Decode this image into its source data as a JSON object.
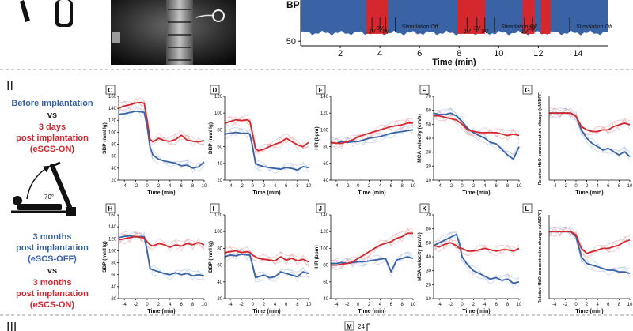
{
  "section_labels": {
    "two": "II",
    "three": "III"
  },
  "side_text": {
    "before": "Before implantation",
    "vs": "vs",
    "days_a": "3 days",
    "days_b": "post implantation",
    "days_c": "(eSCS-ON)",
    "months_a": "3 months",
    "months_b": "post implantation",
    "months_c": "(eSCS-OFF)",
    "vs2": "vs",
    "months2_a": "3 months",
    "months2_b": "post implantation",
    "months2_c": "(eSCS-ON)",
    "angle": "70°"
  },
  "colors": {
    "before": "#3a63a6",
    "on": "#d4272e",
    "off": "#3a63a6",
    "stim_fill": "#d4272e",
    "bp_fill": "#3a63a6"
  },
  "panel_m": {
    "letter": "M",
    "value": "24"
  },
  "chart_data": [
    {
      "id": "top-bp",
      "type": "area",
      "ylabel": "BP",
      "xlabel": "Time (min)",
      "xlim": [
        0,
        15.5
      ],
      "xticks": [
        2,
        4,
        6,
        8,
        10,
        12,
        14
      ],
      "yticks": [
        50
      ],
      "ylim": [
        40,
        140
      ],
      "stimulation_windows": [
        [
          3.3,
          4.4
        ],
        [
          7.9,
          9.3
        ],
        [
          11.2,
          11.8
        ],
        [
          12.1,
          12.6
        ]
      ],
      "annotations": [
        {
          "label": "1V",
          "x": 3.6
        },
        {
          "label": "3V",
          "x": 4.0
        },
        {
          "label": "5V",
          "x": 4.3
        },
        {
          "label": "Stimulation Off",
          "x": 5.1
        },
        {
          "label": "1V",
          "x": 8.4
        },
        {
          "label": "3V",
          "x": 8.9
        },
        {
          "label": "5V",
          "x": 9.3
        },
        {
          "label": "Stimulation Off",
          "x": 10.1
        },
        {
          "label": "1V",
          "x": 11.3
        },
        {
          "label": "3V",
          "x": 11.7
        },
        {
          "label": "Stimulation Off",
          "x": 13.9
        }
      ]
    },
    {
      "id": "C",
      "letter": "C",
      "type": "line",
      "ylabel": "SBP (mmHg)",
      "xlabel": "Time (min)",
      "ylim": [
        20,
        160
      ],
      "yticks": [
        20,
        40,
        60,
        80,
        100,
        120,
        140,
        160
      ],
      "xticks": [
        -4,
        -2,
        0,
        2,
        4,
        6,
        8,
        10
      ],
      "series": [
        {
          "key": "before",
          "x": [
            -5,
            -4,
            -3,
            -2,
            -1,
            -0.5,
            0,
            0.5,
            1,
            2,
            3,
            4,
            5,
            6,
            7,
            8,
            9,
            10
          ],
          "y": [
            130,
            131,
            133,
            135,
            134,
            133,
            110,
            75,
            62,
            55,
            52,
            50,
            48,
            44,
            45,
            40,
            42,
            50
          ]
        },
        {
          "key": "after",
          "x": [
            -5,
            -4,
            -3,
            -2,
            -1,
            -0.5,
            0,
            0.5,
            1,
            2,
            3,
            4,
            5,
            6,
            7,
            8,
            9,
            10
          ],
          "y": [
            140,
            144,
            146,
            149,
            150,
            148,
            120,
            88,
            84,
            90,
            86,
            85,
            88,
            95,
            87,
            85,
            84,
            86
          ]
        }
      ]
    },
    {
      "id": "D",
      "letter": "D",
      "type": "line",
      "ylabel": "DBP (mmHg)",
      "xlabel": "Time (min)",
      "ylim": [
        20,
        120
      ],
      "yticks": [
        20,
        40,
        60,
        80,
        100,
        120
      ],
      "xticks": [
        -4,
        -2,
        0,
        2,
        4,
        6,
        8,
        10
      ],
      "series": [
        {
          "key": "before",
          "x": [
            -5,
            -4,
            -3,
            -2,
            -1,
            -0.5,
            0,
            0.5,
            1,
            2,
            3,
            4,
            5,
            6,
            7,
            8,
            9,
            10
          ],
          "y": [
            75,
            76,
            77,
            76,
            76,
            75,
            60,
            40,
            38,
            36,
            35,
            34,
            33,
            35,
            34,
            32,
            36,
            35
          ]
        },
        {
          "key": "after",
          "x": [
            -5,
            -4,
            -3,
            -2,
            -1,
            -0.5,
            0,
            0.5,
            1,
            2,
            3,
            4,
            5,
            6,
            7,
            8,
            9,
            10
          ],
          "y": [
            88,
            90,
            92,
            91,
            92,
            90,
            75,
            58,
            55,
            57,
            60,
            63,
            65,
            70,
            66,
            62,
            60,
            65
          ]
        }
      ]
    },
    {
      "id": "E",
      "letter": "E",
      "type": "line",
      "ylabel": "HR (bpm)",
      "xlabel": "Time (min)",
      "ylim": [
        40,
        140
      ],
      "yticks": [
        40,
        60,
        80,
        100,
        120,
        140
      ],
      "xticks": [
        -4,
        -2,
        0,
        2,
        4,
        6,
        8,
        10
      ],
      "series": [
        {
          "key": "before",
          "x": [
            -5,
            -4,
            -3,
            -2,
            -1,
            0,
            1,
            2,
            3,
            4,
            5,
            6,
            7,
            8,
            9,
            10
          ],
          "y": [
            85,
            84,
            86,
            85,
            86,
            86,
            88,
            90,
            91,
            92,
            94,
            96,
            97,
            98,
            99,
            100
          ]
        },
        {
          "key": "after",
          "x": [
            -5,
            -4,
            -3,
            -2,
            -1,
            0,
            1,
            2,
            3,
            4,
            5,
            6,
            7,
            8,
            9,
            10
          ],
          "y": [
            85,
            84,
            84,
            86,
            88,
            92,
            94,
            96,
            98,
            100,
            102,
            104,
            105,
            106,
            108,
            108
          ]
        }
      ]
    },
    {
      "id": "F",
      "letter": "F",
      "type": "line",
      "ylabel": "MCA velocity (cm/s)",
      "xlabel": "Time (min)",
      "ylim": [
        10,
        70
      ],
      "yticks": [
        10,
        20,
        30,
        40,
        50,
        60,
        70
      ],
      "xticks": [
        -4,
        -2,
        0,
        2,
        4,
        6,
        8,
        10
      ],
      "series": [
        {
          "key": "before",
          "x": [
            -5,
            -4,
            -3,
            -2,
            -1,
            0,
            1,
            2,
            3,
            4,
            5,
            6,
            7,
            8,
            9,
            10
          ],
          "y": [
            58,
            57,
            57,
            58,
            56,
            52,
            47,
            44,
            42,
            40,
            37,
            36,
            32,
            28,
            25,
            34
          ]
        },
        {
          "key": "after",
          "x": [
            -5,
            -4,
            -3,
            -2,
            -1,
            0,
            1,
            2,
            3,
            4,
            5,
            6,
            7,
            8,
            9,
            10
          ],
          "y": [
            56,
            56,
            55,
            54,
            53,
            50,
            46,
            45,
            44,
            44,
            44,
            44,
            43,
            42,
            43,
            42
          ]
        }
      ]
    },
    {
      "id": "G",
      "letter": "G",
      "type": "line",
      "ylabel": "Relative HbO concentration change (uM/DPF)",
      "xlabel": "Time (min)",
      "ylim": [
        -4,
        1
      ],
      "yticks": [],
      "xticks": [
        -4,
        -2,
        0,
        2,
        4,
        6,
        8,
        10
      ],
      "series": [
        {
          "key": "before",
          "x": [
            -5,
            -4,
            -3,
            -2,
            -1,
            0,
            1,
            2,
            3,
            4,
            5,
            6,
            7,
            8,
            9,
            10
          ],
          "y": [
            0,
            0,
            0,
            0,
            0,
            -0.2,
            -1,
            -1.5,
            -1.8,
            -2,
            -2.2,
            -2.1,
            -2.3,
            -2.5,
            -2.3,
            -2.6
          ]
        },
        {
          "key": "after",
          "x": [
            -5,
            -4,
            -3,
            -2,
            -1,
            0,
            1,
            2,
            3,
            4,
            5,
            6,
            7,
            8,
            9,
            10
          ],
          "y": [
            0,
            0,
            0,
            0,
            0,
            -0.2,
            -0.8,
            -1,
            -1.1,
            -1.1,
            -1,
            -1,
            -0.8,
            -0.7,
            -0.6,
            -0.7
          ]
        }
      ]
    },
    {
      "id": "H",
      "letter": "H",
      "type": "line",
      "ylabel": "SBP (mmHg)",
      "xlabel": "Time (min)",
      "ylim": [
        20,
        160
      ],
      "yticks": [
        20,
        40,
        60,
        80,
        100,
        120,
        140,
        160
      ],
      "xticks": [
        -4,
        -2,
        0,
        2,
        4,
        6,
        8,
        10
      ],
      "series": [
        {
          "key": "off",
          "x": [
            -5,
            -4,
            -3,
            -2,
            -1,
            -0.5,
            0,
            0.5,
            1,
            2,
            3,
            4,
            5,
            6,
            7,
            8,
            9,
            10
          ],
          "y": [
            122,
            124,
            125,
            123,
            124,
            123,
            100,
            70,
            68,
            65,
            62,
            60,
            63,
            60,
            62,
            58,
            60,
            58
          ]
        },
        {
          "key": "on",
          "x": [
            -5,
            -4,
            -3,
            -2,
            -1,
            -0.5,
            0,
            0.5,
            1,
            2,
            3,
            4,
            5,
            6,
            7,
            8,
            9,
            10
          ],
          "y": [
            118,
            120,
            122,
            124,
            122,
            121,
            115,
            110,
            108,
            112,
            110,
            106,
            110,
            108,
            112,
            110,
            114,
            110
          ]
        }
      ]
    },
    {
      "id": "I",
      "letter": "I",
      "type": "line",
      "ylabel": "DBP (mmHg)",
      "xlabel": "Time (min)",
      "ylim": [
        20,
        120
      ],
      "yticks": [
        20,
        40,
        60,
        80,
        100,
        120
      ],
      "xticks": [
        -4,
        -2,
        0,
        2,
        4,
        6,
        8,
        10
      ],
      "series": [
        {
          "key": "off",
          "x": [
            -5,
            -4,
            -3,
            -2,
            -1,
            -0.5,
            0,
            0.5,
            1,
            2,
            3,
            4,
            5,
            6,
            7,
            8,
            9,
            10
          ],
          "y": [
            70,
            72,
            71,
            73,
            72,
            72,
            60,
            45,
            46,
            48,
            45,
            46,
            52,
            50,
            48,
            46,
            52,
            50
          ]
        },
        {
          "key": "on",
          "x": [
            -5,
            -4,
            -3,
            -2,
            -1,
            -0.5,
            0,
            0.5,
            1,
            2,
            3,
            4,
            5,
            6,
            7,
            8,
            9,
            10
          ],
          "y": [
            75,
            76,
            77,
            75,
            76,
            75,
            72,
            70,
            68,
            67,
            66,
            65,
            70,
            66,
            68,
            65,
            67,
            64
          ]
        }
      ]
    },
    {
      "id": "J",
      "letter": "J",
      "type": "line",
      "ylabel": "HR (bpm)",
      "xlabel": "Time (min)",
      "ylim": [
        40,
        140
      ],
      "yticks": [
        40,
        60,
        80,
        100,
        120,
        140
      ],
      "xticks": [
        -4,
        -2,
        0,
        2,
        4,
        6,
        8,
        10
      ],
      "series": [
        {
          "key": "off",
          "x": [
            -5,
            -4,
            -3,
            -2,
            -1,
            0,
            1,
            2,
            3,
            4,
            5,
            6,
            7,
            8,
            9,
            10
          ],
          "y": [
            82,
            82,
            83,
            82,
            83,
            84,
            84,
            85,
            86,
            87,
            88,
            72,
            86,
            88,
            90,
            88
          ]
        },
        {
          "key": "on",
          "x": [
            -5,
            -4,
            -3,
            -2,
            -1,
            0,
            1,
            2,
            3,
            4,
            5,
            6,
            7,
            8,
            9,
            10
          ],
          "y": [
            80,
            80,
            81,
            82,
            84,
            88,
            92,
            96,
            100,
            104,
            106,
            108,
            112,
            114,
            118,
            118
          ]
        }
      ]
    },
    {
      "id": "K",
      "letter": "K",
      "type": "line",
      "ylabel": "MCA velocity (cm/s)",
      "xlabel": "Time (min)",
      "ylim": [
        10,
        70
      ],
      "yticks": [
        10,
        20,
        30,
        40,
        50,
        60,
        70
      ],
      "xticks": [
        -4,
        -2,
        0,
        2,
        4,
        6,
        8,
        10
      ],
      "series": [
        {
          "key": "off",
          "x": [
            -5,
            -4,
            -3,
            -2,
            -1,
            -0.5,
            0,
            1,
            2,
            3,
            4,
            5,
            6,
            7,
            8,
            9,
            10
          ],
          "y": [
            48,
            50,
            52,
            54,
            56,
            50,
            40,
            34,
            30,
            28,
            26,
            24,
            25,
            23,
            24,
            21,
            22
          ]
        },
        {
          "key": "on",
          "x": [
            -5,
            -4,
            -3,
            -2,
            -1,
            -0.5,
            0,
            1,
            2,
            3,
            4,
            5,
            6,
            7,
            8,
            9,
            10
          ],
          "y": [
            48,
            47,
            49,
            50,
            48,
            46,
            46,
            44,
            44,
            45,
            46,
            45,
            44,
            45,
            45,
            44,
            46
          ]
        }
      ]
    },
    {
      "id": "L",
      "letter": "L",
      "type": "line",
      "ylabel": "Relative HbO concentration change (uM/DPF)",
      "xlabel": "Time (min)",
      "ylim": [
        -4,
        1
      ],
      "yticks": [],
      "xticks": [
        -4,
        -2,
        0,
        2,
        4,
        6,
        8,
        10
      ],
      "series": [
        {
          "key": "off",
          "x": [
            -5,
            -4,
            -3,
            -2,
            -1,
            0,
            1,
            2,
            3,
            4,
            5,
            6,
            7,
            8,
            9,
            10
          ],
          "y": [
            0,
            0,
            0,
            0,
            0,
            -0.3,
            -1.5,
            -1.9,
            -2,
            -2.1,
            -2.2,
            -2.3,
            -2.3,
            -2.4,
            -2.4,
            -2.5
          ]
        },
        {
          "key": "on",
          "x": [
            -5,
            -4,
            -3,
            -2,
            -1,
            0,
            1,
            2,
            3,
            4,
            5,
            6,
            7,
            8,
            9,
            10
          ],
          "y": [
            0,
            0,
            0,
            0,
            0,
            -0.2,
            -1,
            -1.3,
            -1.2,
            -1.1,
            -1,
            -1,
            -0.9,
            -0.8,
            -0.6,
            -0.5
          ]
        }
      ]
    }
  ]
}
